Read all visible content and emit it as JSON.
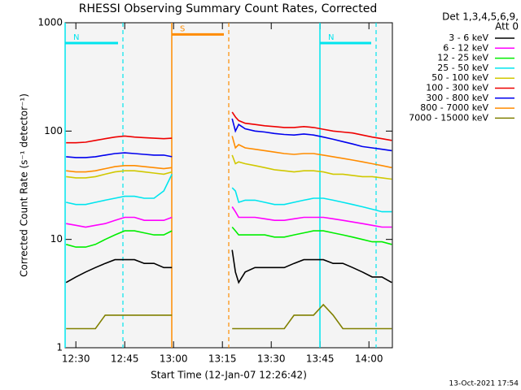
{
  "chart_data": {
    "type": "line",
    "title": "RHESSI Observing Summary Count Rates, Corrected",
    "x_label": "Start Time (12-Jan-07 12:26:42)",
    "y_label": "Corrected Count Rate (s⁻¹ detector⁻¹)",
    "legend_header": [
      "Det 1,3,4,5,6,9,",
      "Att 0"
    ],
    "footer": "13-Oct-2021 17:54",
    "y_log": true,
    "legend": "right",
    "xlim": [
      26.7,
      127.2
    ],
    "xticks": [
      {
        "value": 30,
        "label": "12:30"
      },
      {
        "value": 45,
        "label": "12:45"
      },
      {
        "value": 60,
        "label": "13:00"
      },
      {
        "value": 75,
        "label": "13:15"
      },
      {
        "value": 90,
        "label": "13:30"
      },
      {
        "value": 105,
        "label": "13:45"
      },
      {
        "value": 120,
        "label": "14:00"
      }
    ],
    "ylim": [
      1,
      1000
    ],
    "yticks": [
      1,
      10,
      100,
      1000
    ],
    "annotations": [
      {
        "text": "N",
        "start": 26.7,
        "end": 44.45,
        "color": "#00e5ee",
        "level": 650
      },
      {
        "text": "S",
        "start": 59.45,
        "end": 76.95,
        "color": "#ff8c00",
        "level": 780
      },
      {
        "text": "N",
        "start": 104.95,
        "end": 122.2,
        "color": "#00e5ee",
        "level": 650
      }
    ],
    "x": [
      27,
      30,
      33,
      36,
      39,
      42,
      45,
      48,
      51,
      54,
      57,
      59.5,
      70,
      78,
      79,
      80,
      82,
      85,
      88,
      91,
      94,
      97,
      100,
      103,
      106,
      109,
      112,
      115,
      118,
      121,
      124,
      127
    ],
    "series": [
      {
        "name": "3 - 6 keV",
        "color": "#000000",
        "values": [
          4,
          4.5,
          5,
          5.5,
          6,
          6.5,
          6.5,
          6.5,
          6,
          6,
          5.5,
          5.5,
          null,
          8,
          5,
          4,
          5,
          5.5,
          5.5,
          5.5,
          5.5,
          6,
          6.5,
          6.5,
          6.5,
          6,
          6,
          5.5,
          5,
          4.5,
          4.5,
          4
        ]
      },
      {
        "name": "6 - 12 keV",
        "color": "#ff00ff",
        "values": [
          14,
          13.5,
          13,
          13.5,
          14,
          15,
          16,
          16,
          15,
          15,
          15,
          16,
          null,
          20,
          18,
          16,
          16,
          16,
          15.5,
          15,
          15,
          15.5,
          16,
          16,
          16,
          15.5,
          15,
          14.5,
          14,
          13.5,
          13,
          13
        ]
      },
      {
        "name": "12 - 25 keV",
        "color": "#00ee00",
        "values": [
          9,
          8.5,
          8.5,
          9,
          10,
          11,
          12,
          12,
          11.5,
          11,
          11,
          12,
          null,
          13,
          12,
          11,
          11,
          11,
          11,
          10.5,
          10.5,
          11,
          11.5,
          12,
          12,
          11.5,
          11,
          10.5,
          10,
          9.5,
          9.5,
          9
        ]
      },
      {
        "name": "25 - 50 keV",
        "color": "#00e5ee",
        "values": [
          22,
          21,
          21,
          22,
          23,
          24,
          25,
          25,
          24,
          24,
          28,
          40,
          null,
          30,
          28,
          22,
          23,
          23,
          22,
          21,
          21,
          22,
          23,
          24,
          24,
          23,
          22,
          21,
          20,
          19,
          18,
          18
        ]
      },
      {
        "name": "50 - 100 keV",
        "color": "#d0c800",
        "values": [
          38,
          37,
          37,
          38,
          40,
          42,
          43,
          43,
          42,
          41,
          40,
          42,
          null,
          60,
          50,
          52,
          50,
          48,
          46,
          44,
          43,
          42,
          43,
          43,
          42,
          40,
          40,
          39,
          38,
          38,
          37,
          36
        ]
      },
      {
        "name": "100 - 300 keV",
        "color": "#ee0000",
        "values": [
          78,
          78,
          79,
          82,
          85,
          88,
          90,
          88,
          87,
          86,
          85,
          86,
          null,
          150,
          135,
          125,
          118,
          115,
          112,
          110,
          108,
          108,
          110,
          108,
          104,
          100,
          98,
          96,
          92,
          88,
          85,
          82
        ]
      },
      {
        "name": "300 - 800 keV",
        "color": "#0000ee",
        "values": [
          58,
          57,
          57,
          58,
          60,
          62,
          63,
          62,
          61,
          60,
          60,
          58,
          null,
          130,
          100,
          115,
          105,
          100,
          98,
          95,
          93,
          92,
          94,
          92,
          88,
          84,
          80,
          76,
          72,
          70,
          68,
          66
        ]
      },
      {
        "name": "800 - 7000 keV",
        "color": "#ff8c00",
        "values": [
          43,
          42,
          42,
          43,
          45,
          47,
          48,
          48,
          47,
          46,
          45,
          46,
          null,
          90,
          70,
          75,
          70,
          68,
          66,
          64,
          62,
          61,
          62,
          62,
          60,
          58,
          56,
          54,
          52,
          50,
          48,
          46
        ]
      },
      {
        "name": "7000 - 15000 keV",
        "color": "#808000",
        "values": [
          1.5,
          1.5,
          1.5,
          1.5,
          2,
          2,
          2,
          2,
          2,
          2,
          2,
          2,
          null,
          1.5,
          1.5,
          1.5,
          1.5,
          1.5,
          1.5,
          1.5,
          1.5,
          2,
          2,
          2,
          2.5,
          2,
          1.5,
          1.5,
          1.5,
          1.5,
          1.5,
          1.5
        ]
      }
    ]
  }
}
